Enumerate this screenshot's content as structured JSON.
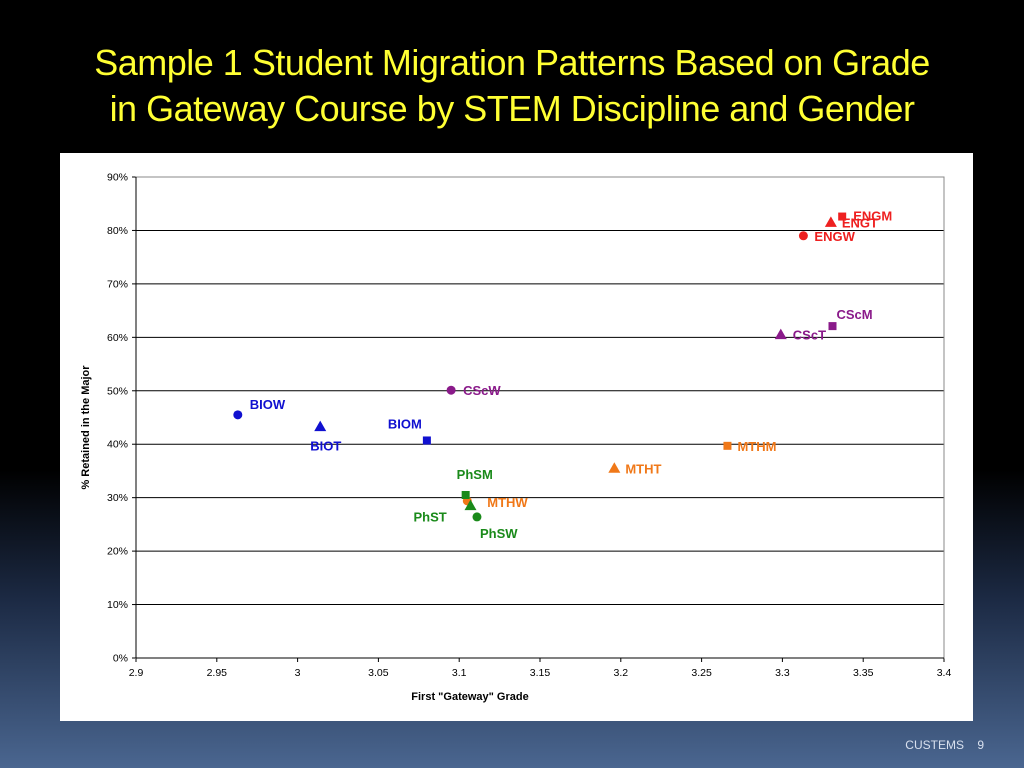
{
  "slide": {
    "title_line1": "Sample 1 Student Migration Patterns Based on Grade",
    "title_line2": "in Gateway Course by STEM Discipline and Gender",
    "footer_text": "CUSTEMS",
    "page_number": "9",
    "title_color": "#ffff33"
  },
  "chart_data": {
    "type": "scatter",
    "xlabel": "First \"Gateway\" Grade",
    "ylabel": "% Retained in the Major",
    "xlim": [
      2.9,
      3.4
    ],
    "ylim": [
      0,
      90
    ],
    "x_ticks": [
      "2.9",
      "2.95",
      "3",
      "3.05",
      "3.1",
      "3.15",
      "3.2",
      "3.25",
      "3.3",
      "3.35",
      "3.4"
    ],
    "y_ticks": [
      "0%",
      "10%",
      "20%",
      "30%",
      "40%",
      "50%",
      "60%",
      "70%",
      "80%",
      "90%"
    ],
    "grid": "horizontal",
    "points": [
      {
        "label": "BIOW",
        "x": 2.963,
        "y": 45.5,
        "marker": "circle",
        "color": "#1010d0"
      },
      {
        "label": "BIOT",
        "x": 3.014,
        "y": 43.3,
        "marker": "triangle",
        "color": "#1010d0"
      },
      {
        "label": "BIOM",
        "x": 3.08,
        "y": 40.7,
        "marker": "square",
        "color": "#1010d0"
      },
      {
        "label": "CScW",
        "x": 3.095,
        "y": 50.1,
        "marker": "circle",
        "color": "#8a1a8a"
      },
      {
        "label": "CScT",
        "x": 3.299,
        "y": 60.5,
        "marker": "triangle",
        "color": "#8a1a8a"
      },
      {
        "label": "CScM",
        "x": 3.331,
        "y": 62.1,
        "marker": "square",
        "color": "#8a1a8a"
      },
      {
        "label": "ENGW",
        "x": 3.313,
        "y": 79.0,
        "marker": "circle",
        "color": "#ee2020"
      },
      {
        "label": "ENGT",
        "x": 3.33,
        "y": 81.5,
        "marker": "triangle",
        "color": "#ee2020"
      },
      {
        "label": "ENGM",
        "x": 3.337,
        "y": 82.6,
        "marker": "square",
        "color": "#ee2020"
      },
      {
        "label": "MTHT",
        "x": 3.196,
        "y": 35.5,
        "marker": "triangle",
        "color": "#f07818"
      },
      {
        "label": "MTHM",
        "x": 3.266,
        "y": 39.7,
        "marker": "square",
        "color": "#f07818"
      },
      {
        "label": "MTHW",
        "x": 3.105,
        "y": 29.4,
        "marker": "circle",
        "color": "#f07818"
      },
      {
        "label": "PhSM",
        "x": 3.104,
        "y": 30.5,
        "marker": "square",
        "color": "#1a8a1a"
      },
      {
        "label": "PhST",
        "x": 3.107,
        "y": 28.5,
        "marker": "triangle",
        "color": "#1a8a1a"
      },
      {
        "label": "PhSW",
        "x": 3.111,
        "y": 26.4,
        "marker": "circle",
        "color": "#1a8a1a"
      }
    ]
  }
}
